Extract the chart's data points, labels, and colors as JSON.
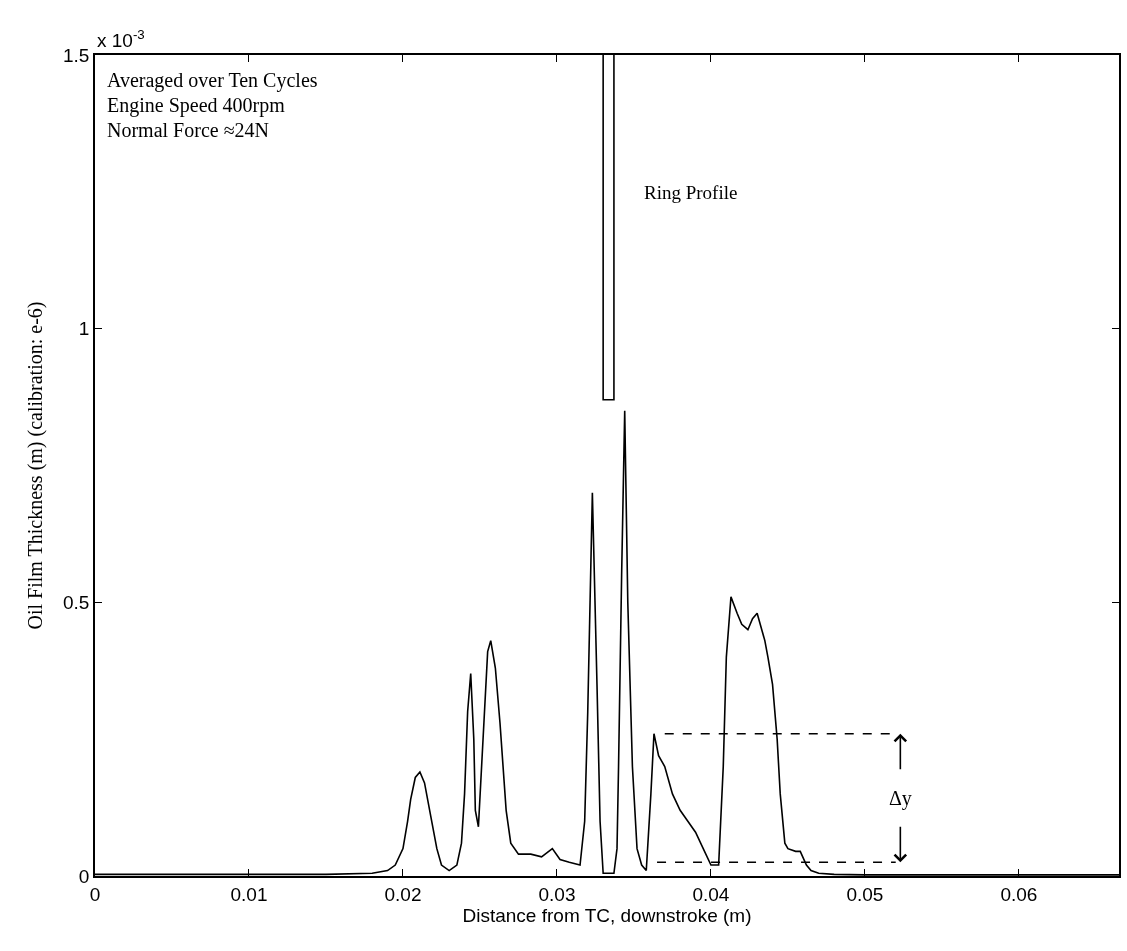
{
  "chart_data": {
    "type": "line",
    "xlabel": "Distance from TC, downstroke (m)",
    "ylabel": "Oil Film Thickness (m) (calibration: e-6)",
    "xlim": [
      0,
      0.0665
    ],
    "xticks": [
      0,
      0.01,
      0.02,
      0.03,
      0.04,
      0.05,
      0.06
    ],
    "ylim": [
      0,
      1.5
    ],
    "yticks": [
      0,
      0.5,
      1,
      1.5
    ],
    "series": [
      {
        "color": "#000000",
        "line_style": "solid",
        "x": [
          0,
          0.005,
          0.01,
          0.015,
          0.018,
          0.019,
          0.0195,
          0.02,
          0.0203,
          0.0205,
          0.0208,
          0.0211,
          0.0214,
          0.0218,
          0.0222,
          0.0225,
          0.023,
          0.0235,
          0.0238,
          0.024,
          0.0242,
          0.0244,
          0.0246,
          0.0247,
          0.0249,
          0.0252,
          0.0255,
          0.0257,
          0.026,
          0.0263,
          0.0267,
          0.027,
          0.0275,
          0.0283,
          0.029,
          0.0297,
          0.0302,
          0.0308,
          0.0315,
          0.0318,
          0.032,
          0.0323,
          0.0326,
          0.0328,
          0.033,
          0.0337,
          0.0339,
          0.034,
          0.0342,
          0.0344,
          0.0346,
          0.0349,
          0.0352,
          0.0355,
          0.0358,
          0.0361,
          0.0363,
          0.0366,
          0.037,
          0.0375,
          0.038,
          0.0385,
          0.039,
          0.0395,
          0.04,
          0.0405,
          0.0408,
          0.041,
          0.0413,
          0.0417,
          0.042,
          0.0424,
          0.0427,
          0.043,
          0.0432,
          0.0435,
          0.0437,
          0.044,
          0.0443,
          0.0445,
          0.0448,
          0.045,
          0.0455,
          0.0458,
          0.0462,
          0.0465,
          0.047,
          0.048,
          0.05,
          0.055,
          0.06,
          0.0665
        ],
        "values": [
          0.003,
          0.003,
          0.003,
          0.003,
          0.005,
          0.01,
          0.02,
          0.05,
          0.1,
          0.14,
          0.18,
          0.19,
          0.17,
          0.11,
          0.05,
          0.02,
          0.01,
          0.02,
          0.06,
          0.15,
          0.3,
          0.37,
          0.25,
          0.12,
          0.09,
          0.25,
          0.41,
          0.43,
          0.38,
          0.28,
          0.12,
          0.06,
          0.04,
          0.04,
          0.035,
          0.05,
          0.03,
          0.025,
          0.02,
          0.1,
          0.3,
          0.7,
          0.35,
          0.1,
          0.005,
          0.005,
          0.05,
          0.2,
          0.55,
          0.85,
          0.5,
          0.2,
          0.05,
          0.02,
          0.01,
          0.15,
          0.26,
          0.22,
          0.2,
          0.15,
          0.12,
          0.1,
          0.08,
          0.05,
          0.02,
          0.02,
          0.2,
          0.4,
          0.51,
          0.48,
          0.46,
          0.45,
          0.47,
          0.48,
          0.46,
          0.43,
          0.4,
          0.35,
          0.25,
          0.15,
          0.06,
          0.05,
          0.045,
          0.045,
          0.02,
          0.01,
          0.005,
          0.003,
          0.002,
          0.002,
          0.002,
          0.002
        ]
      },
      {
        "name": "Ring Profile",
        "color": "#000000",
        "line_style": "solid",
        "x": [
          0.033,
          0.033,
          0.0337,
          0.0337
        ],
        "values": [
          1.5,
          0.87,
          0.87,
          1.5
        ]
      },
      {
        "color": "#000000",
        "line_style": "dashed",
        "x": [
          0.037,
          0.052
        ],
        "values": [
          0.26,
          0.26
        ]
      },
      {
        "color": "#000000",
        "line_style": "dashed",
        "x": [
          0.0365,
          0.052
        ],
        "values": [
          0.025,
          0.025
        ]
      }
    ],
    "annotations": [
      "x 10$^{-3}$",
      "Averaged over Ten Cycles",
      "Engine Speed 400rpm",
      "Normal Force ≈24N",
      "Δy"
    ]
  }
}
